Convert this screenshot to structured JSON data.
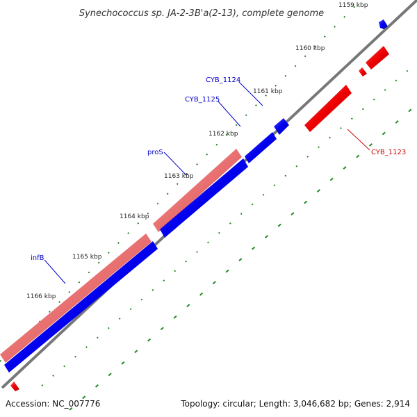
{
  "title": "Synechococcus sp. JA-2-3B'a(2-13), complete genome",
  "ticks": [
    "1159 kbp",
    "1160 kbp",
    "1161 kbp",
    "1162 kbp",
    "1163 kbp",
    "1164 kbp",
    "1165 kbp",
    "1166 kbp"
  ],
  "genes": [
    {
      "label": "CYB_1124",
      "strand": "+"
    },
    {
      "label": "CYB_1125",
      "strand": "+"
    },
    {
      "label": "proS",
      "strand": "+"
    },
    {
      "label": "infB",
      "strand": "+"
    },
    {
      "label": "CYB_1123",
      "strand": "-"
    }
  ],
  "footer": {
    "accession": "Accession: NC_007776",
    "info": "Topology: circular; Length: 3,046,682 bp; Genes: 2,914"
  },
  "colors": {
    "forward_cds": "#0000ff",
    "reverse_cds": "#ff0000",
    "rna_track": "#e87878",
    "backbone": "#777777",
    "tick_mark": "#2a7a2a",
    "gc_dots": "#1f8a1f"
  }
}
